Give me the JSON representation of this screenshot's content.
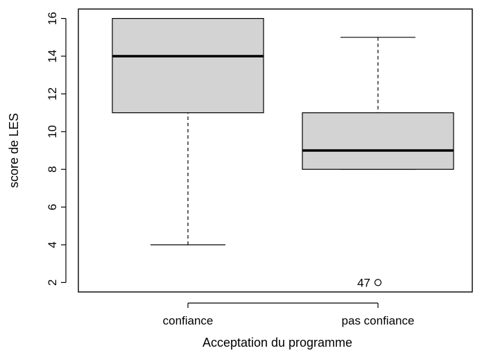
{
  "chart_data": {
    "type": "boxplot",
    "xlabel": "Acceptation du programme",
    "ylabel": "score de LES",
    "ylim": [
      1.5,
      16.5
    ],
    "yticks": [
      2,
      4,
      6,
      8,
      10,
      12,
      14,
      16
    ],
    "ytick_labels": [
      "2",
      "4",
      "6",
      "8",
      "10",
      "12",
      "14",
      "16"
    ],
    "categories": [
      "confiance",
      "pas confiance"
    ],
    "boxes": [
      {
        "category": "confiance",
        "whisker_low": 4,
        "q1": 11,
        "median": 14,
        "q3": 16,
        "whisker_high": 16,
        "outliers": []
      },
      {
        "category": "pas confiance",
        "whisker_low": 8,
        "q1": 8,
        "median": 9,
        "q3": 11,
        "whisker_high": 15,
        "outliers": [
          {
            "value": 2,
            "label": "47"
          }
        ]
      }
    ],
    "grid": false,
    "colors": {
      "box_fill": "#d3d3d3",
      "stroke": "#000000",
      "background": "#ffffff"
    }
  }
}
